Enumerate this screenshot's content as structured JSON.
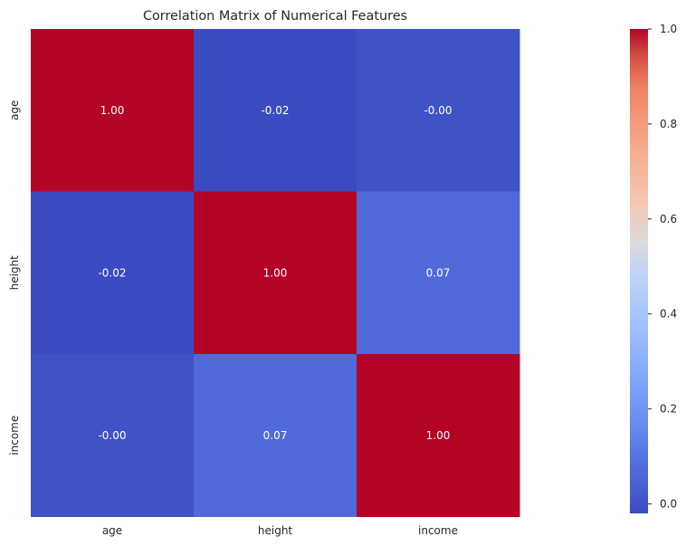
{
  "chart_data": {
    "type": "heatmap",
    "title": "Correlation Matrix of Numerical Features",
    "x_categories": [
      "age",
      "height",
      "income"
    ],
    "y_categories": [
      "age",
      "height",
      "income"
    ],
    "values": [
      [
        1.0,
        -0.02,
        -0.0
      ],
      [
        -0.02,
        1.0,
        0.07
      ],
      [
        -0.0,
        0.07,
        1.0
      ]
    ],
    "cell_labels": [
      [
        "1.00",
        "-0.02",
        "-0.00"
      ],
      [
        "-0.02",
        "1.00",
        "0.07"
      ],
      [
        "-0.00",
        "0.07",
        "1.00"
      ]
    ],
    "colormap": "coolwarm",
    "colorbar": {
      "range": [
        -0.02,
        1.0
      ],
      "ticks": [
        0.0,
        0.2,
        0.4,
        0.6,
        0.8,
        1.0
      ],
      "tick_labels": [
        "0.0",
        "0.2",
        "0.4",
        "0.6",
        "0.8",
        "1.0"
      ]
    },
    "xlabel": "",
    "ylabel": ""
  }
}
